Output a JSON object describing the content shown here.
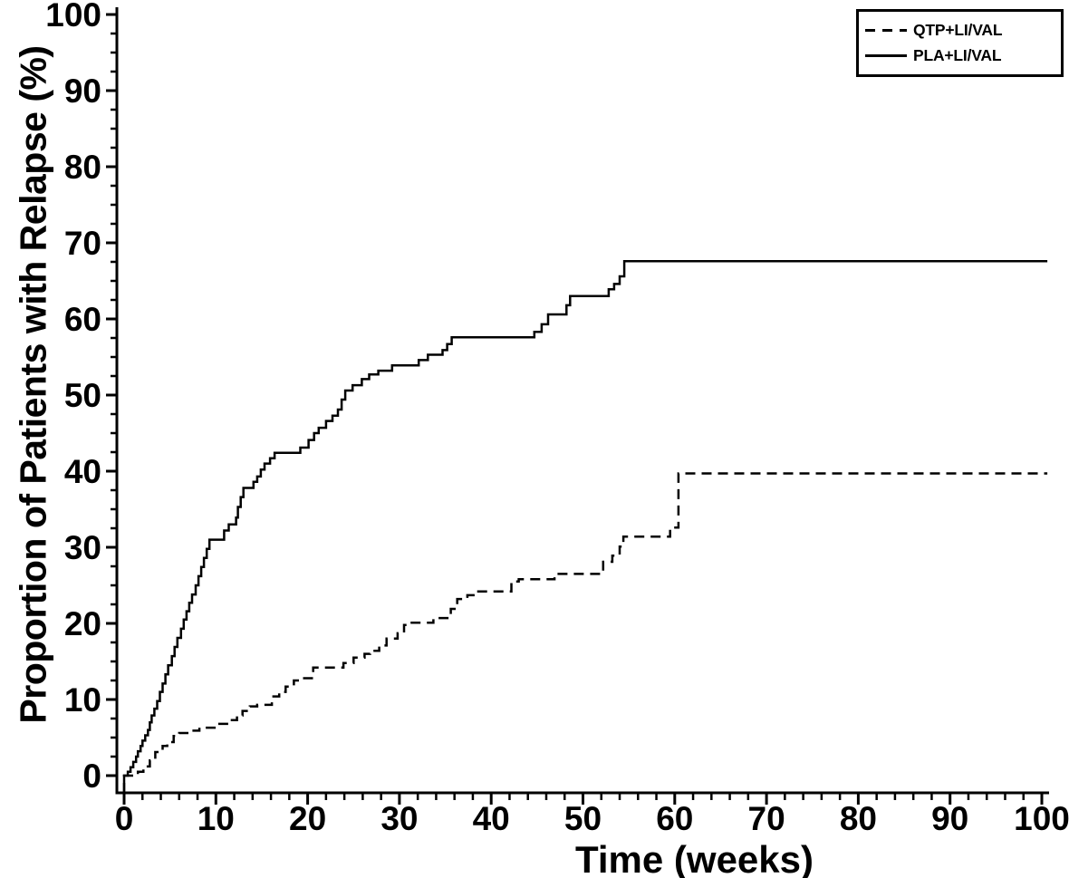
{
  "figure": {
    "background": "#ffffff",
    "stroke_color": "#000000"
  },
  "chart_data": {
    "type": "line",
    "subtype": "kaplan-meier-step",
    "title": "",
    "xlabel": "Time (weeks)",
    "ylabel": "Proportion of Patients with Relapse (%)",
    "xlim": [
      0,
      100
    ],
    "ylim": [
      0,
      100
    ],
    "x_ticks": [
      0,
      10,
      20,
      30,
      40,
      50,
      60,
      70,
      80,
      90,
      100
    ],
    "x_minor_tick_step": 2,
    "y_ticks": [
      0,
      10,
      20,
      30,
      40,
      50,
      60,
      70,
      80,
      90,
      100
    ],
    "y_minor_tick_step": 2.5,
    "grid": false,
    "legend_position": "top-right",
    "curve_end_x": 100.6,
    "series": [
      {
        "name": "QTP+LI/VAL",
        "line_style": "dashed",
        "color": "#000000",
        "steps": [
          [
            0,
            0
          ],
          [
            1.5,
            0.5
          ],
          [
            2.1,
            1.2
          ],
          [
            2.8,
            2.0
          ],
          [
            3.4,
            3.1
          ],
          [
            4.2,
            3.9
          ],
          [
            4.7,
            4.4
          ],
          [
            5.4,
            5.2
          ],
          [
            6.0,
            5.6
          ],
          [
            7.3,
            5.9
          ],
          [
            8.2,
            6.3
          ],
          [
            10.0,
            6.8
          ],
          [
            11.6,
            7.3
          ],
          [
            12.3,
            7.9
          ],
          [
            12.9,
            8.5
          ],
          [
            13.7,
            9.1
          ],
          [
            14.5,
            9.3
          ],
          [
            16.1,
            10.4
          ],
          [
            16.9,
            11.0
          ],
          [
            17.6,
            11.7
          ],
          [
            18.5,
            12.5
          ],
          [
            19.3,
            12.8
          ],
          [
            20.6,
            14.2
          ],
          [
            23.9,
            14.8
          ],
          [
            25.0,
            15.5
          ],
          [
            26.2,
            16.0
          ],
          [
            26.8,
            16.4
          ],
          [
            27.8,
            17.1
          ],
          [
            28.6,
            18.0
          ],
          [
            29.8,
            18.7
          ],
          [
            30.5,
            19.8
          ],
          [
            31.1,
            20.1
          ],
          [
            33.7,
            20.7
          ],
          [
            35.6,
            21.9
          ],
          [
            36.3,
            23.2
          ],
          [
            37.4,
            23.7
          ],
          [
            38.2,
            24.2
          ],
          [
            42.2,
            25.5
          ],
          [
            43.0,
            25.8
          ],
          [
            46.9,
            26.5
          ],
          [
            52.2,
            28.1
          ],
          [
            53.2,
            28.9
          ],
          [
            54.0,
            30.1
          ],
          [
            54.4,
            31.4
          ],
          [
            59.5,
            32.6
          ],
          [
            60.4,
            39.7
          ]
        ]
      },
      {
        "name": "PLA+LI/VAL",
        "line_style": "solid",
        "color": "#000000",
        "steps": [
          [
            0,
            0
          ],
          [
            0.4,
            0.5
          ],
          [
            0.7,
            1.1
          ],
          [
            1.0,
            1.8
          ],
          [
            1.3,
            2.5
          ],
          [
            1.5,
            3.2
          ],
          [
            1.8,
            3.9
          ],
          [
            2.0,
            4.6
          ],
          [
            2.3,
            5.3
          ],
          [
            2.6,
            6.0
          ],
          [
            2.8,
            7.0
          ],
          [
            3.0,
            7.9
          ],
          [
            3.3,
            8.8
          ],
          [
            3.6,
            9.8
          ],
          [
            3.9,
            11.0
          ],
          [
            4.2,
            12.1
          ],
          [
            4.5,
            13.3
          ],
          [
            4.8,
            14.5
          ],
          [
            5.2,
            15.7
          ],
          [
            5.5,
            16.9
          ],
          [
            5.8,
            18.1
          ],
          [
            6.2,
            19.3
          ],
          [
            6.5,
            20.5
          ],
          [
            6.8,
            21.6
          ],
          [
            7.1,
            22.7
          ],
          [
            7.4,
            23.8
          ],
          [
            7.8,
            25.0
          ],
          [
            8.1,
            26.2
          ],
          [
            8.4,
            27.4
          ],
          [
            8.7,
            28.6
          ],
          [
            9.0,
            29.8
          ],
          [
            9.3,
            31.0
          ],
          [
            10.9,
            32.2
          ],
          [
            11.4,
            33.0
          ],
          [
            12.2,
            33.9
          ],
          [
            12.4,
            35.3
          ],
          [
            12.7,
            36.6
          ],
          [
            13.0,
            37.8
          ],
          [
            14.1,
            38.6
          ],
          [
            14.5,
            39.3
          ],
          [
            14.9,
            40.2
          ],
          [
            15.3,
            41.0
          ],
          [
            15.9,
            41.7
          ],
          [
            16.4,
            42.4
          ],
          [
            19.2,
            43.1
          ],
          [
            20.1,
            44.1
          ],
          [
            20.7,
            45.0
          ],
          [
            21.2,
            45.7
          ],
          [
            22.0,
            46.6
          ],
          [
            22.7,
            47.3
          ],
          [
            23.3,
            48.1
          ],
          [
            23.7,
            49.4
          ],
          [
            24.1,
            50.6
          ],
          [
            24.9,
            51.3
          ],
          [
            25.9,
            52.1
          ],
          [
            26.7,
            52.7
          ],
          [
            27.7,
            53.2
          ],
          [
            29.2,
            53.9
          ],
          [
            32.1,
            54.6
          ],
          [
            33.1,
            55.3
          ],
          [
            34.7,
            55.9
          ],
          [
            35.2,
            56.7
          ],
          [
            35.7,
            57.6
          ],
          [
            44.7,
            58.3
          ],
          [
            45.5,
            59.3
          ],
          [
            46.2,
            60.6
          ],
          [
            48.2,
            61.8
          ],
          [
            48.6,
            63.0
          ],
          [
            52.8,
            63.9
          ],
          [
            53.4,
            64.6
          ],
          [
            54.0,
            65.6
          ],
          [
            54.5,
            67.6
          ]
        ]
      }
    ]
  }
}
